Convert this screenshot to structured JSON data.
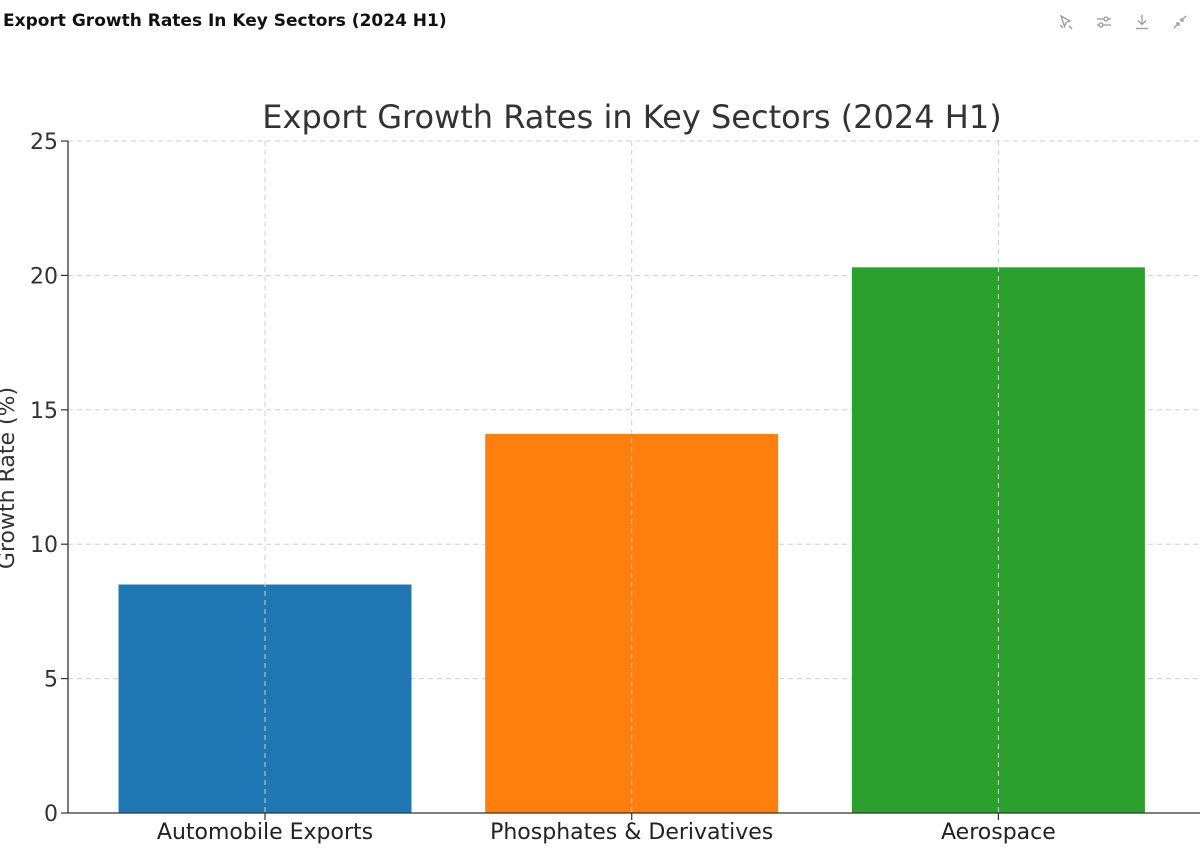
{
  "panel": {
    "title": "Export Growth Rates In Key Sectors (2024 H1)"
  },
  "toolbar": {
    "icons": [
      "interact-icon",
      "adjust-icon",
      "download-icon",
      "collapse-icon"
    ],
    "icon_color": "#9a9a9a"
  },
  "chart_data": {
    "type": "bar",
    "title": "Export Growth Rates in Key Sectors (2024 H1)",
    "xlabel": "",
    "ylabel": "Growth Rate (%)",
    "categories": [
      "Automobile Exports",
      "Phosphates & Derivatives",
      "Aerospace"
    ],
    "values": [
      8.5,
      14.1,
      20.3
    ],
    "colors": [
      "#1f77b4",
      "#ff7f0e",
      "#2ca02c"
    ],
    "ylim": [
      0,
      25
    ],
    "yticks": [
      0,
      5,
      10,
      15,
      20,
      25
    ],
    "grid": true
  }
}
